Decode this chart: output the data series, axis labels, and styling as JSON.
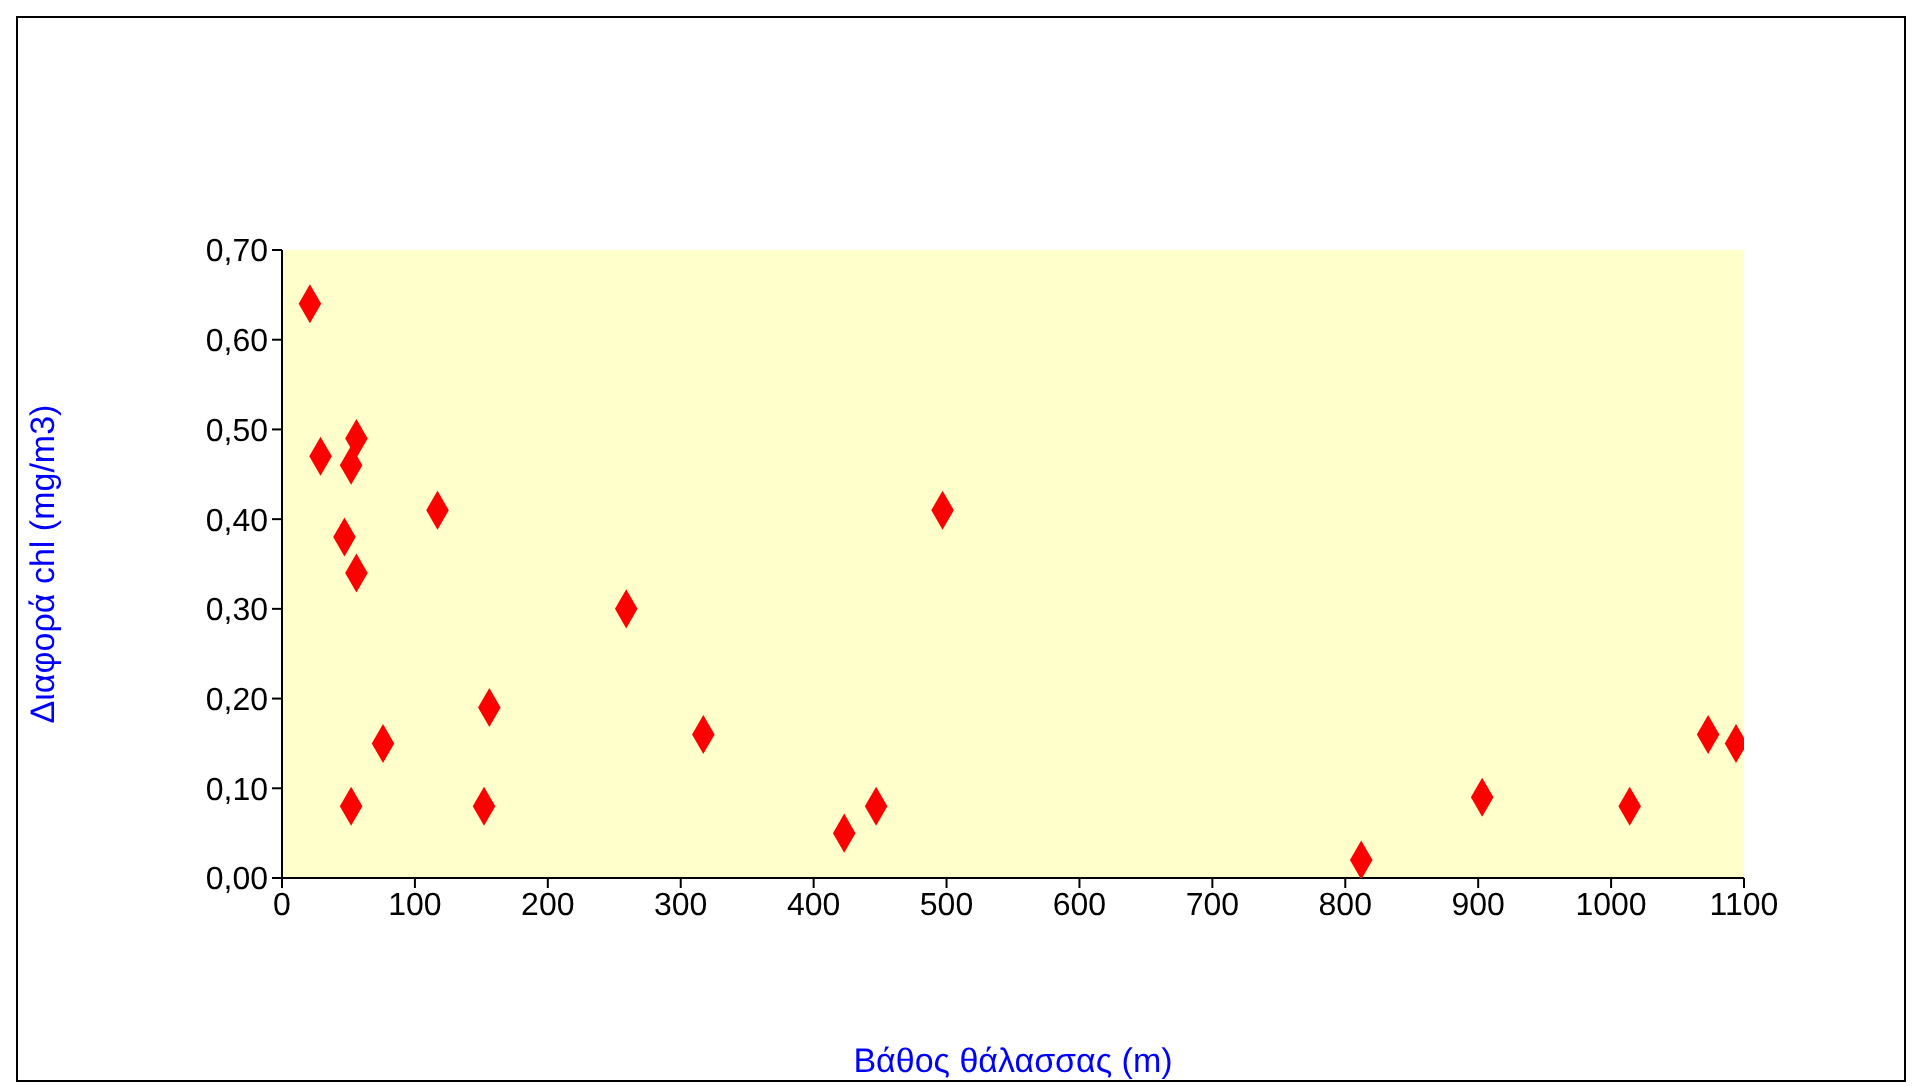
{
  "chart_data": {
    "type": "scatter",
    "xlabel": "Βάθος θάλασσας (m)",
    "ylabel": "Διαφορά chl (mg/m3)",
    "x": [
      21,
      29,
      56,
      52,
      47,
      56,
      76,
      52,
      117,
      156,
      152,
      259,
      317,
      423,
      447,
      497,
      812,
      903,
      1014,
      1073,
      1094
    ],
    "values": [
      0.64,
      0.47,
      0.49,
      0.46,
      0.38,
      0.34,
      0.15,
      0.08,
      0.41,
      0.19,
      0.08,
      0.3,
      0.16,
      0.05,
      0.08,
      0.41,
      0.02,
      0.09,
      0.08,
      0.16,
      0.15
    ],
    "color": "#ff0000",
    "marker": "diamond",
    "xlim": [
      0,
      1100
    ],
    "xticks": [
      0,
      100,
      200,
      300,
      400,
      500,
      600,
      700,
      800,
      900,
      1000,
      1100
    ],
    "ylim": [
      0,
      0.7
    ],
    "yticks": [
      {
        "value": 0,
        "label": "0,00"
      },
      {
        "value": 0.1,
        "label": "0,10"
      },
      {
        "value": 0.2,
        "label": "0,20"
      },
      {
        "value": 0.3,
        "label": "0,30"
      },
      {
        "value": 0.4,
        "label": "0,40"
      },
      {
        "value": 0.5,
        "label": "0,50"
      },
      {
        "value": 0.6,
        "label": "0,60"
      },
      {
        "value": 0.7,
        "label": "0,70"
      }
    ],
    "legend": false
  }
}
